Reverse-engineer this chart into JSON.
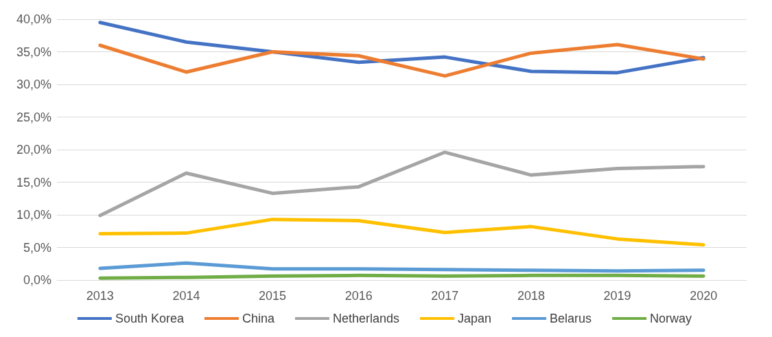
{
  "chart_data": {
    "type": "line",
    "categories": [
      "2013",
      "2014",
      "2015",
      "2016",
      "2017",
      "2018",
      "2019",
      "2020"
    ],
    "series": [
      {
        "name": "South Korea",
        "color": "#4472c4",
        "values": [
          39.5,
          36.5,
          35.0,
          33.4,
          34.2,
          32.0,
          31.8,
          34.1
        ]
      },
      {
        "name": "China",
        "color": "#ed7d31",
        "values": [
          36.0,
          31.9,
          35.0,
          34.4,
          31.3,
          34.8,
          36.1,
          33.9
        ]
      },
      {
        "name": "Netherlands",
        "color": "#a5a5a5",
        "values": [
          9.9,
          16.4,
          13.3,
          14.3,
          19.6,
          16.1,
          17.1,
          17.4
        ]
      },
      {
        "name": "Japan",
        "color": "#ffc000",
        "values": [
          7.1,
          7.2,
          9.3,
          9.1,
          7.3,
          8.2,
          6.3,
          5.4
        ]
      },
      {
        "name": "Belarus",
        "color": "#5b9bd5",
        "values": [
          1.8,
          2.6,
          1.7,
          1.7,
          1.6,
          1.5,
          1.4,
          1.5
        ]
      },
      {
        "name": "Norway",
        "color": "#70ad47",
        "values": [
          0.3,
          0.4,
          0.6,
          0.7,
          0.6,
          0.7,
          0.7,
          0.6
        ]
      }
    ],
    "ylim": [
      0,
      40
    ],
    "yticks": [
      {
        "value": 0,
        "label": "0,0%"
      },
      {
        "value": 5,
        "label": "5,0%"
      },
      {
        "value": 10,
        "label": "10,0%"
      },
      {
        "value": 15,
        "label": "15,0%"
      },
      {
        "value": 20,
        "label": "20,0%"
      },
      {
        "value": 25,
        "label": "25,0%"
      },
      {
        "value": 30,
        "label": "30,0%"
      },
      {
        "value": 35,
        "label": "35,0%"
      },
      {
        "value": 40,
        "label": "40,0%"
      }
    ],
    "grid": "y",
    "legend": "bottom",
    "marker": "none",
    "line_style": "solid"
  }
}
